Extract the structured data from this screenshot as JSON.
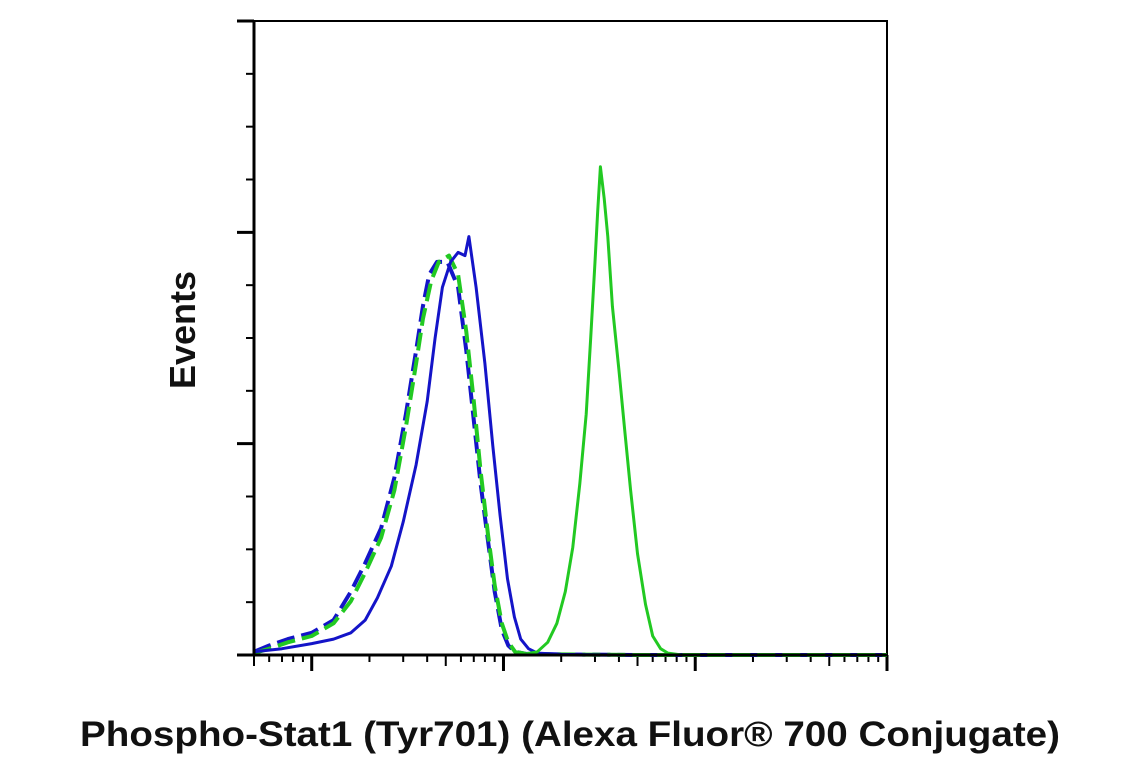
{
  "chart_data": {
    "type": "line",
    "title": "",
    "xlabel": "Phospho-Stat1 (Tyr701) (Alexa Fluor® 700 Conjugate)",
    "ylabel": "Events",
    "x_scale": "log",
    "xlim": [
      0.5,
      1000
    ],
    "ylim": [
      0,
      100
    ],
    "grid": false,
    "legend": "none",
    "series": [
      {
        "color": "#1414c8",
        "style": "dashed",
        "points": [
          [
            0.5,
            0.5
          ],
          [
            0.6,
            1.5
          ],
          [
            0.75,
            2.5
          ],
          [
            1.0,
            3.5
          ],
          [
            1.3,
            5.5
          ],
          [
            1.6,
            10
          ],
          [
            1.9,
            14.5
          ],
          [
            2.3,
            20
          ],
          [
            2.7,
            28
          ],
          [
            3.1,
            38
          ],
          [
            3.5,
            48
          ],
          [
            3.8,
            55
          ],
          [
            4.1,
            60
          ],
          [
            4.5,
            62
          ],
          [
            5.1,
            62
          ],
          [
            5.8,
            58
          ],
          [
            6.4,
            48
          ],
          [
            7.0,
            37
          ],
          [
            7.6,
            27
          ],
          [
            8.3,
            18
          ],
          [
            9.0,
            10
          ],
          [
            9.8,
            4
          ],
          [
            10.6,
            1.5
          ],
          [
            11.5,
            0.5
          ],
          [
            13,
            0.2
          ],
          [
            20,
            0.1
          ],
          [
            50,
            0
          ],
          [
            1000,
            0
          ]
        ]
      },
      {
        "color": "#22c922",
        "style": "dashed",
        "points": [
          [
            0.5,
            0.3
          ],
          [
            0.6,
            1
          ],
          [
            0.75,
            2
          ],
          [
            1.0,
            3
          ],
          [
            1.3,
            5
          ],
          [
            1.6,
            8.5
          ],
          [
            1.9,
            13
          ],
          [
            2.3,
            18.5
          ],
          [
            2.7,
            26
          ],
          [
            3.1,
            36
          ],
          [
            3.5,
            46
          ],
          [
            3.8,
            53
          ],
          [
            4.2,
            59
          ],
          [
            4.6,
            62
          ],
          [
            5.2,
            63
          ],
          [
            5.8,
            60
          ],
          [
            6.4,
            51
          ],
          [
            7.0,
            40
          ],
          [
            7.6,
            29
          ],
          [
            8.3,
            19
          ],
          [
            9.0,
            11
          ],
          [
            9.8,
            5
          ],
          [
            10.6,
            2
          ],
          [
            11.5,
            0.5
          ],
          [
            13,
            0.2
          ],
          [
            20,
            0.1
          ],
          [
            50,
            0
          ],
          [
            1000,
            0
          ]
        ]
      },
      {
        "color": "#1414c8",
        "style": "solid",
        "points": [
          [
            0.5,
            0.5
          ],
          [
            0.7,
            1
          ],
          [
            1.0,
            1.8
          ],
          [
            1.3,
            2.5
          ],
          [
            1.6,
            3.5
          ],
          [
            1.9,
            5.5
          ],
          [
            2.2,
            9
          ],
          [
            2.6,
            14
          ],
          [
            3.0,
            21
          ],
          [
            3.5,
            30
          ],
          [
            4.0,
            40
          ],
          [
            4.4,
            50
          ],
          [
            4.8,
            58
          ],
          [
            5.3,
            62
          ],
          [
            5.8,
            63.5
          ],
          [
            6.3,
            63
          ],
          [
            6.6,
            66
          ],
          [
            7.2,
            58
          ],
          [
            8.0,
            46
          ],
          [
            8.8,
            33
          ],
          [
            9.6,
            22
          ],
          [
            10.5,
            12
          ],
          [
            11.4,
            6
          ],
          [
            12.3,
            2.5
          ],
          [
            13.5,
            1
          ],
          [
            15,
            0.3
          ],
          [
            20,
            0.1
          ],
          [
            40,
            0
          ],
          [
            1000,
            0
          ]
        ]
      },
      {
        "color": "#22c922",
        "style": "solid",
        "points": [
          [
            0.5,
            0
          ],
          [
            12,
            0
          ],
          [
            15,
            0.5
          ],
          [
            17,
            2
          ],
          [
            19,
            5
          ],
          [
            21,
            10
          ],
          [
            23,
            17
          ],
          [
            25,
            27
          ],
          [
            27,
            38
          ],
          [
            28.5,
            50
          ],
          [
            30,
            62
          ],
          [
            31,
            70
          ],
          [
            32,
            77
          ],
          [
            33.5,
            72
          ],
          [
            35,
            66
          ],
          [
            37,
            55
          ],
          [
            40,
            45
          ],
          [
            43,
            35
          ],
          [
            46,
            26
          ],
          [
            50,
            16
          ],
          [
            55,
            8
          ],
          [
            60,
            3
          ],
          [
            66,
            1
          ],
          [
            72,
            0.3
          ],
          [
            85,
            0
          ],
          [
            1000,
            0
          ]
        ]
      }
    ]
  }
}
